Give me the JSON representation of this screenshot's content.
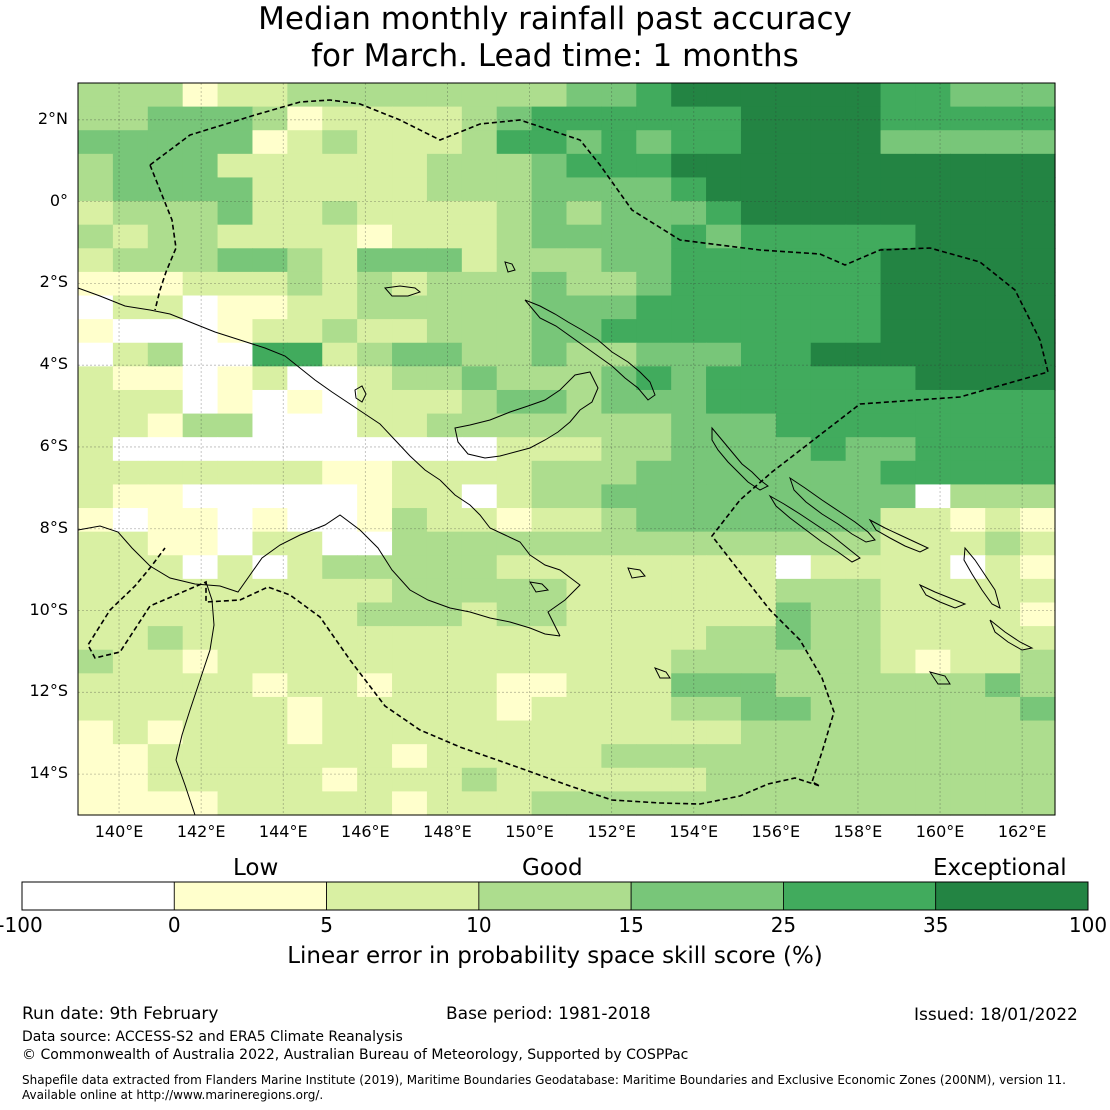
{
  "title": {
    "line1": "Median monthly rainfall past accuracy",
    "line2": "for March. Lead time: 1 months"
  },
  "map": {
    "lat_labels": [
      "2°N",
      "0°",
      "2°S",
      "4°S",
      "6°S",
      "8°S",
      "10°S",
      "12°S",
      "14°S"
    ],
    "lon_labels": [
      "140°E",
      "142°E",
      "144°E",
      "146°E",
      "148°E",
      "150°E",
      "152°E",
      "154°E",
      "156°E",
      "158°E",
      "160°E",
      "162°E"
    ],
    "extent": {
      "lon_min": 139.0,
      "lon_max": 162.8,
      "lat_min": -15.0,
      "lat_max": 2.9
    },
    "grid_rows_north_to_south": [
      "3331223333333344566666655444",
      "3344431222234555555666655555",
      "4444412322235545455666644444",
      "3444222222333455566666666666",
      "3444422222333444456666666666",
      "2333422322223434445666666666",
      "3233222212223444454555556666",
      "2333443244423334455555566666",
      "1112223232333433455555566666",
      "0220112233333444555555566666",
      "1000122322333445555555566666",
      "0230055234433433444556666666",
      "2110120023343334545555556666",
      "2220101022234434445555555555",
      "2213300022333333344455555555",
      "2000000000002223344445445555",
      "2222222112222333444444455555",
      "2110000012202334444444440333",
      "1011010013221223444444422121",
      "2211022003333333333333322232",
      "2220202333332222222202222021",
      "2222222223333322222233322222",
      "2222222233323322222243322221",
      "2232222222222222223343322222",
      "3221222222222222233333321223",
      "2222212212221122244433333343",
      "2222221222221222233443333334",
      "1212221222222222222333333333",
      "1122222221222223333333333333",
      "1122222122232222223333333333",
      "1111222221222333333333333333"
    ]
  },
  "colorbar": {
    "categories": [
      "Low",
      "Good",
      "Exceptional"
    ],
    "ticks": [
      "-100",
      "0",
      "5",
      "10",
      "15",
      "25",
      "35",
      "100"
    ],
    "colors": [
      "#ffffff",
      "#ffffcc",
      "#d9f0a3",
      "#addd8e",
      "#78c679",
      "#41ab5d",
      "#238443"
    ],
    "label": "Linear error in probability space skill score (%)"
  },
  "footer": {
    "run_date": "Run date: 9th February",
    "base_period": "Base period: 1981-2018",
    "issued": "Issued: 18/01/2022",
    "data_source": "Data source: ACCESS-S2 and ERA5 Climate Reanalysis",
    "copyright": "© Commonwealth of Australia 2022, Australian Bureau of Meteorology, Supported by COSPPac",
    "shapefile_line1": "Shapefile data extracted from Flanders Marine Institute (2019), Maritime Boundaries Geodatabase: Maritime Boundaries and Exclusive Economic Zones (200NM), version 11.",
    "shapefile_line2": "Available online at http://www.marineregions.org/."
  }
}
